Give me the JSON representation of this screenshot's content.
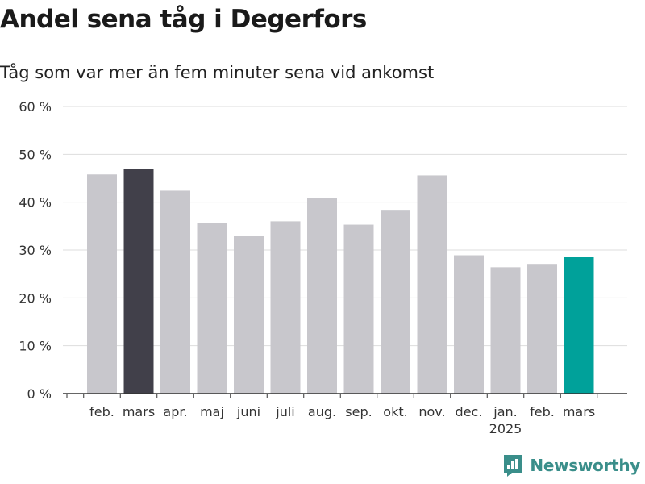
{
  "title": "Andel sena tåg i Degerfors",
  "subtitle": "Tåg som var mer än fem minuter sena vid ankomst",
  "brand": {
    "name": "Newsworthy",
    "color": "#3a8e8a",
    "icon": "newsworthy-logo-icon"
  },
  "colors": {
    "default_bar": "#c8c7cc",
    "highlight_dark": "#41404a",
    "highlight_accent": "#00a19a",
    "grid": "#dddddd",
    "axis": "#333333"
  },
  "chart_data": {
    "type": "bar",
    "title": "Andel sena tåg i Degerfors",
    "subtitle": "Tåg som var mer än fem minuter sena vid ankomst",
    "categories": [
      "feb.",
      "mars",
      "apr.",
      "maj",
      "juni",
      "juli",
      "aug.",
      "sep.",
      "okt.",
      "nov.",
      "dec.",
      "jan.",
      "feb.",
      "mars"
    ],
    "year_labels": [
      "",
      "",
      "",
      "",
      "",
      "",
      "",
      "",
      "",
      "",
      "",
      "2025",
      "",
      ""
    ],
    "values": [
      45.8,
      47.0,
      42.4,
      35.7,
      33.0,
      36.0,
      40.9,
      35.3,
      38.4,
      45.6,
      28.9,
      26.4,
      27.1,
      28.6
    ],
    "bar_colors": [
      "#c8c7cc",
      "#41404a",
      "#c8c7cc",
      "#c8c7cc",
      "#c8c7cc",
      "#c8c7cc",
      "#c8c7cc",
      "#c8c7cc",
      "#c8c7cc",
      "#c8c7cc",
      "#c8c7cc",
      "#c8c7cc",
      "#c8c7cc",
      "#00a19a"
    ],
    "ylim": [
      0,
      60
    ],
    "yticks": [
      0,
      10,
      20,
      30,
      40,
      50,
      60
    ],
    "ytick_labels": [
      "0 %",
      "10 %",
      "20 %",
      "30 %",
      "40 %",
      "50 %",
      "60 %"
    ],
    "xlabel": "",
    "ylabel": "",
    "grid": true,
    "legend": "none"
  }
}
